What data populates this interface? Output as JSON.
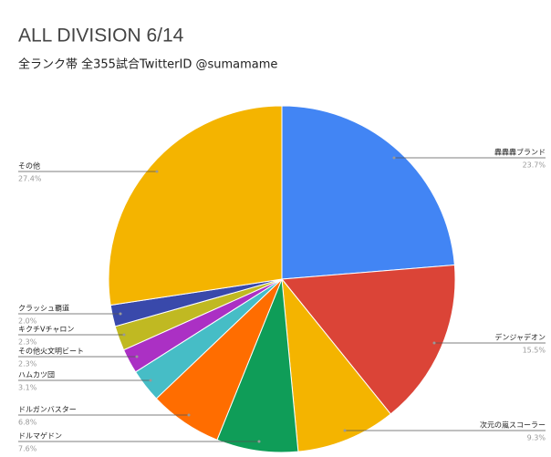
{
  "chart_data": {
    "type": "pie",
    "title": "ALL DIVISION 6/14",
    "subtitle": "全ランク帯 全355試合TwitterID @sumamame",
    "categories": [
      "轟轟轟ブランド",
      "デンジャデオン",
      "次元の嵐スコーラー",
      "ドルマゲドン",
      "ドルガンバスター",
      "ハムカツ団",
      "その他火文明ビート",
      "キクチVチャロン",
      "クラッシュ覇道",
      "その他"
    ],
    "values": [
      23.7,
      15.5,
      9.3,
      7.6,
      6.8,
      3.1,
      2.3,
      2.3,
      2.0,
      27.4
    ],
    "value_labels": [
      "23.7%",
      "15.5%",
      "9.3%",
      "7.6%",
      "6.8%",
      "3.1%",
      "2.3%",
      "2.3%",
      "2.0%",
      "27.4%"
    ],
    "colors": [
      "#4285f4",
      "#db4437",
      "#f4b400",
      "#0f9d58",
      "#ff6d00",
      "#46bdc6",
      "#ab30c4",
      "#c0b922",
      "#3949ab",
      "#f4b400"
    ]
  }
}
